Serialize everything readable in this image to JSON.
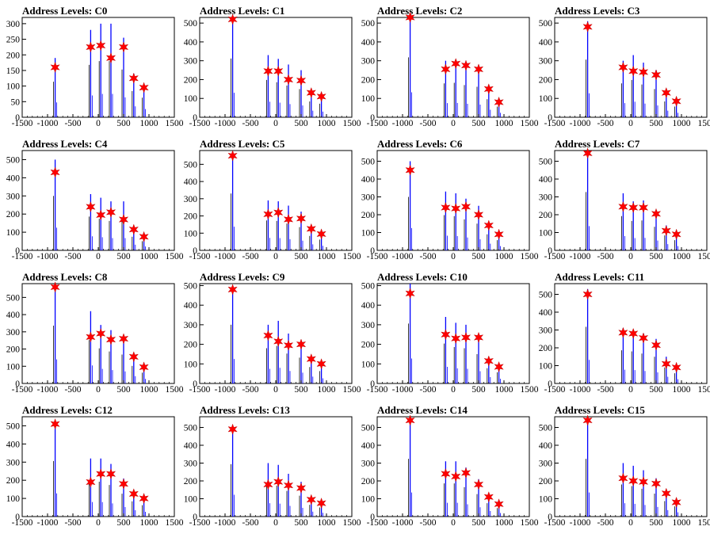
{
  "figure": {
    "title_prefix": "Address Levels: ",
    "colors": {
      "histogram": "#0000ff",
      "histogram_secondary": "#000000",
      "peak_marker": "#ff0000",
      "axis": "#000000",
      "background": "#ffffff"
    },
    "marker_shape": "star"
  },
  "chart_data": [
    {
      "title": "Address Levels: C0",
      "type": "bar",
      "xlim": [
        -1500,
        1500
      ],
      "ylim": [
        0,
        320
      ],
      "xticks": [
        "-1500",
        "-1000",
        "-500",
        "0",
        "500",
        "1000",
        "1500"
      ],
      "yticks": [
        "0",
        "50",
        "100",
        "150",
        "200",
        "250",
        "300"
      ],
      "peaks_x": [
        -850,
        -150,
        50,
        250,
        500,
        700,
        900
      ],
      "peaks_y": [
        160,
        225,
        230,
        190,
        225,
        125,
        95
      ],
      "bar_max": [
        190,
        280,
        300,
        300,
        255,
        140,
        105
      ]
    },
    {
      "title": "Address Levels: C1",
      "type": "bar",
      "xlim": [
        -1500,
        1500
      ],
      "ylim": [
        0,
        530
      ],
      "xticks": [
        "-1500",
        "-1000",
        "-500",
        "0",
        "500",
        "1000",
        "1500"
      ],
      "yticks": [
        "0",
        "100",
        "200",
        "300",
        "400",
        "500"
      ],
      "peaks_x": [
        -850,
        -150,
        50,
        250,
        500,
        700,
        900
      ],
      "peaks_y": [
        520,
        245,
        245,
        200,
        195,
        130,
        110
      ],
      "bar_max": [
        520,
        330,
        310,
        280,
        250,
        140,
        120
      ]
    },
    {
      "title": "Address Levels: C2",
      "type": "bar",
      "xlim": [
        -1500,
        1500
      ],
      "ylim": [
        0,
        530
      ],
      "xticks": [
        "-1500",
        "-1000",
        "-500",
        "0",
        "500",
        "1000",
        "1500"
      ],
      "yticks": [
        "0",
        "100",
        "200",
        "300",
        "400",
        "500"
      ],
      "peaks_x": [
        -850,
        -150,
        50,
        250,
        500,
        700,
        900
      ],
      "peaks_y": [
        530,
        255,
        285,
        275,
        255,
        150,
        80
      ],
      "bar_max": [
        530,
        300,
        305,
        285,
        270,
        160,
        95
      ]
    },
    {
      "title": "Address Levels: C3",
      "type": "bar",
      "xlim": [
        -1500,
        1500
      ],
      "ylim": [
        0,
        530
      ],
      "xticks": [
        "-1500",
        "-1000",
        "-500",
        "0",
        "500",
        "1000",
        "1500"
      ],
      "yticks": [
        "0",
        "100",
        "200",
        "300",
        "400",
        "500"
      ],
      "peaks_x": [
        -850,
        -150,
        50,
        250,
        500,
        700,
        900
      ],
      "peaks_y": [
        480,
        265,
        245,
        240,
        225,
        130,
        85
      ],
      "bar_max": [
        510,
        300,
        330,
        290,
        250,
        140,
        95
      ]
    },
    {
      "title": "Address Levels: C4",
      "type": "bar",
      "xlim": [
        -1500,
        1500
      ],
      "ylim": [
        0,
        550
      ],
      "xticks": [
        "-1500",
        "-1000",
        "-500",
        "0",
        "500",
        "1000",
        "1500"
      ],
      "yticks": [
        "0",
        "100",
        "200",
        "300",
        "400",
        "500"
      ],
      "peaks_x": [
        -850,
        -150,
        50,
        250,
        500,
        700,
        900
      ],
      "peaks_y": [
        430,
        240,
        195,
        210,
        170,
        115,
        75
      ],
      "bar_max": [
        500,
        310,
        290,
        270,
        270,
        125,
        85
      ]
    },
    {
      "title": "Address Levels: C5",
      "type": "bar",
      "xlim": [
        -1500,
        1500
      ],
      "ylim": [
        0,
        580
      ],
      "xticks": [
        "-1500",
        "-1000",
        "-500",
        "0",
        "500",
        "1000",
        "1500"
      ],
      "yticks": [
        "0",
        "100",
        "200",
        "300",
        "400",
        "500"
      ],
      "peaks_x": [
        -850,
        -150,
        50,
        250,
        500,
        700,
        900
      ],
      "peaks_y": [
        550,
        210,
        220,
        180,
        185,
        125,
        95
      ],
      "bar_max": [
        550,
        290,
        285,
        260,
        225,
        140,
        105
      ]
    },
    {
      "title": "Address Levels: C6",
      "type": "bar",
      "xlim": [
        -1500,
        1500
      ],
      "ylim": [
        0,
        560
      ],
      "xticks": [
        "-1500",
        "-1000",
        "-500",
        "0",
        "500",
        "1000",
        "1500"
      ],
      "yticks": [
        "0",
        "100",
        "200",
        "300",
        "400",
        "500"
      ],
      "peaks_x": [
        -850,
        -150,
        50,
        250,
        500,
        700,
        900
      ],
      "peaks_y": [
        450,
        240,
        235,
        245,
        200,
        140,
        90
      ],
      "bar_max": [
        500,
        330,
        320,
        290,
        250,
        150,
        95
      ]
    },
    {
      "title": "Address Levels: C7",
      "type": "bar",
      "xlim": [
        -1500,
        1500
      ],
      "ylim": [
        0,
        560
      ],
      "xticks": [
        "-1500",
        "-1000",
        "-500",
        "0",
        "500",
        "1000",
        "1500"
      ],
      "yticks": [
        "0",
        "100",
        "200",
        "300",
        "400",
        "500"
      ],
      "peaks_x": [
        -850,
        -150,
        50,
        250,
        500,
        700,
        900
      ],
      "peaks_y": [
        545,
        245,
        240,
        240,
        205,
        110,
        90
      ],
      "bar_max": [
        545,
        320,
        275,
        280,
        220,
        140,
        95
      ]
    },
    {
      "title": "Address Levels: C8",
      "type": "bar",
      "xlim": [
        -1500,
        1500
      ],
      "ylim": [
        0,
        580
      ],
      "xticks": [
        "-1500",
        "-1000",
        "-500",
        "0",
        "500",
        "1000",
        "1500"
      ],
      "yticks": [
        "0",
        "100",
        "200",
        "300",
        "400",
        "500"
      ],
      "peaks_x": [
        -850,
        -150,
        50,
        250,
        500,
        700,
        900
      ],
      "peaks_y": [
        560,
        270,
        290,
        255,
        260,
        155,
        95
      ],
      "bar_max": [
        560,
        420,
        340,
        310,
        280,
        170,
        105
      ]
    },
    {
      "title": "Address Levels: C9",
      "type": "bar",
      "xlim": [
        -1500,
        1500
      ],
      "ylim": [
        0,
        510
      ],
      "xticks": [
        "-1500",
        "-1000",
        "-500",
        "0",
        "500",
        "1000",
        "1500"
      ],
      "yticks": [
        "0",
        "100",
        "200",
        "300",
        "400",
        "500"
      ],
      "peaks_x": [
        -850,
        -150,
        50,
        250,
        500,
        700,
        900
      ],
      "peaks_y": [
        480,
        245,
        215,
        195,
        200,
        125,
        100
      ],
      "bar_max": [
        500,
        300,
        320,
        255,
        220,
        140,
        105
      ]
    },
    {
      "title": "Address Levels: C10",
      "type": "bar",
      "xlim": [
        -1500,
        1500
      ],
      "ylim": [
        0,
        510
      ],
      "xticks": [
        "-1500",
        "-1000",
        "-500",
        "0",
        "500",
        "1000",
        "1500"
      ],
      "yticks": [
        "0",
        "100",
        "200",
        "300",
        "400",
        "500"
      ],
      "peaks_x": [
        -850,
        -150,
        50,
        250,
        500,
        700,
        900
      ],
      "peaks_y": [
        460,
        250,
        230,
        235,
        235,
        115,
        85
      ],
      "bar_max": [
        510,
        340,
        310,
        300,
        250,
        130,
        95
      ]
    },
    {
      "title": "Address Levels: C11",
      "type": "bar",
      "xlim": [
        -1500,
        1500
      ],
      "ylim": [
        0,
        560
      ],
      "xticks": [
        "-1500",
        "-1000",
        "-500",
        "0",
        "500",
        "1000",
        "1500"
      ],
      "yticks": [
        "0",
        "100",
        "200",
        "300",
        "400",
        "500"
      ],
      "peaks_x": [
        -850,
        -150,
        50,
        250,
        500,
        700,
        900
      ],
      "peaks_y": [
        500,
        285,
        280,
        255,
        215,
        110,
        90
      ],
      "bar_max": [
        530,
        310,
        300,
        280,
        250,
        150,
        95
      ]
    },
    {
      "title": "Address Levels: C12",
      "type": "bar",
      "xlim": [
        -1500,
        1500
      ],
      "ylim": [
        0,
        550
      ],
      "xticks": [
        "-1500",
        "-1000",
        "-500",
        "0",
        "500",
        "1000",
        "1500"
      ],
      "yticks": [
        "0",
        "100",
        "200",
        "300",
        "400",
        "500"
      ],
      "peaks_x": [
        -850,
        -150,
        50,
        250,
        500,
        700,
        900
      ],
      "peaks_y": [
        510,
        190,
        235,
        235,
        180,
        125,
        100
      ],
      "bar_max": [
        510,
        320,
        320,
        290,
        210,
        140,
        105
      ]
    },
    {
      "title": "Address Levels: C13",
      "type": "bar",
      "xlim": [
        -1500,
        1500
      ],
      "ylim": [
        0,
        560
      ],
      "xticks": [
        "-1500",
        "-1000",
        "-500",
        "0",
        "500",
        "1000",
        "1500"
      ],
      "yticks": [
        "0",
        "100",
        "200",
        "300",
        "400",
        "500"
      ],
      "peaks_x": [
        -850,
        -150,
        50,
        250,
        500,
        700,
        900
      ],
      "peaks_y": [
        490,
        180,
        195,
        175,
        160,
        95,
        75
      ],
      "bar_max": [
        490,
        300,
        290,
        240,
        195,
        110,
        85
      ]
    },
    {
      "title": "Address Levels: C14",
      "type": "bar",
      "xlim": [
        -1500,
        1500
      ],
      "ylim": [
        0,
        560
      ],
      "xticks": [
        "-1500",
        "-1000",
        "-500",
        "0",
        "500",
        "1000",
        "1500"
      ],
      "yticks": [
        "0",
        "100",
        "200",
        "300",
        "400",
        "500"
      ],
      "peaks_x": [
        -850,
        -150,
        50,
        250,
        500,
        700,
        900
      ],
      "peaks_y": [
        540,
        240,
        225,
        245,
        180,
        110,
        70
      ],
      "bar_max": [
        540,
        310,
        310,
        275,
        210,
        125,
        80
      ]
    },
    {
      "title": "Address Levels: C15",
      "type": "bar",
      "xlim": [
        -1500,
        1500
      ],
      "ylim": [
        0,
        560
      ],
      "xticks": [
        "-1500",
        "-1000",
        "-500",
        "0",
        "500",
        "1000",
        "1500"
      ],
      "yticks": [
        "0",
        "100",
        "200",
        "300",
        "400",
        "500"
      ],
      "peaks_x": [
        -850,
        -150,
        50,
        250,
        500,
        700,
        900
      ],
      "peaks_y": [
        540,
        215,
        200,
        195,
        185,
        130,
        80
      ],
      "bar_max": [
        540,
        300,
        285,
        260,
        215,
        145,
        95
      ]
    }
  ]
}
